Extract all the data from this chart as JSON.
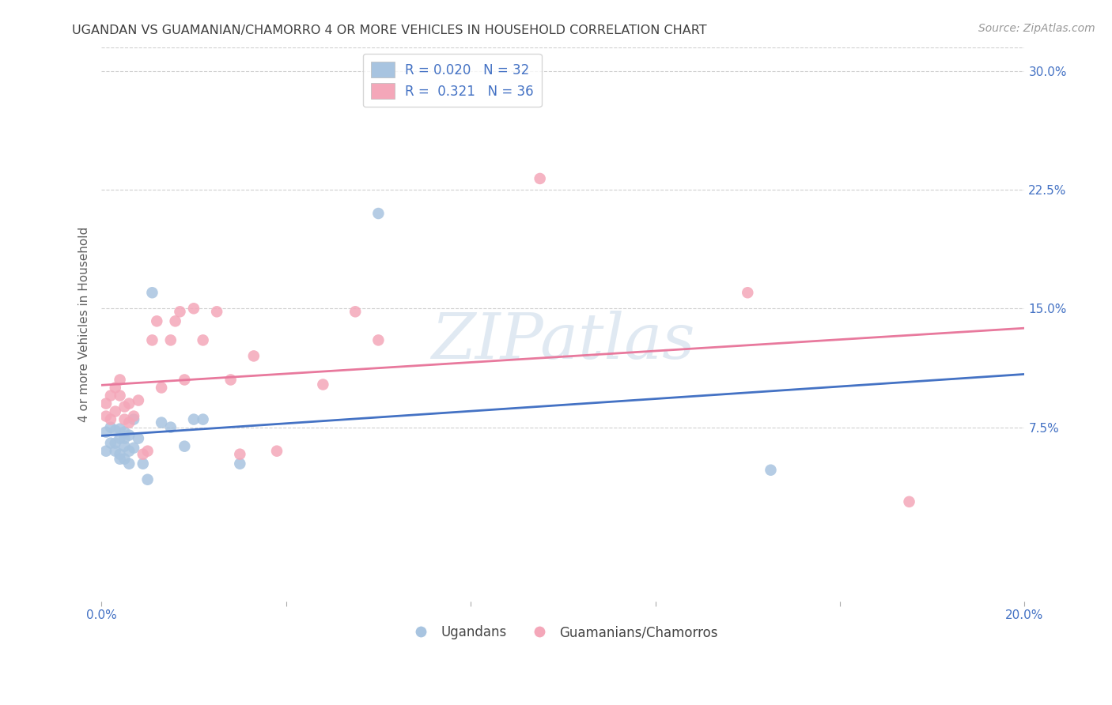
{
  "title": "UGANDAN VS GUAMANIAN/CHAMORRO 4 OR MORE VEHICLES IN HOUSEHOLD CORRELATION CHART",
  "source": "Source: ZipAtlas.com",
  "ylabel": "4 or more Vehicles in Household",
  "ugandan_R": 0.02,
  "ugandan_N": 32,
  "guamanian_R": 0.321,
  "guamanian_N": 36,
  "ugandan_color": "#a8c4e0",
  "guamanian_color": "#f4a7b9",
  "ugandan_line_color": "#4472c4",
  "guamanian_line_color": "#e8799d",
  "legend_label_ugandan": "Ugandans",
  "legend_label_guamanian": "Guamanians/Chamorros",
  "background_color": "#ffffff",
  "grid_color": "#d0d0d0",
  "title_color": "#404040",
  "axis_label_color": "#606060",
  "tick_color_blue": "#4472c4",
  "watermark_text": "ZIPatlas",
  "xlim": [
    0.0,
    0.2
  ],
  "ylim": [
    -0.035,
    0.315
  ],
  "ytick_positions": [
    0.0,
    0.075,
    0.15,
    0.225,
    0.3
  ],
  "ytick_labels": [
    "",
    "7.5%",
    "15.0%",
    "22.5%",
    "30.0%"
  ],
  "xtick_positions": [
    0.0,
    0.04,
    0.08,
    0.12,
    0.16,
    0.2
  ],
  "xtick_labels": [
    "0.0%",
    "",
    "",
    "",
    "",
    "20.0%"
  ],
  "ugandan_x": [
    0.001,
    0.001,
    0.002,
    0.002,
    0.003,
    0.003,
    0.003,
    0.004,
    0.004,
    0.004,
    0.004,
    0.005,
    0.005,
    0.005,
    0.005,
    0.006,
    0.006,
    0.006,
    0.007,
    0.007,
    0.008,
    0.009,
    0.01,
    0.011,
    0.013,
    0.015,
    0.018,
    0.02,
    0.022,
    0.03,
    0.06,
    0.145
  ],
  "ugandan_y": [
    0.06,
    0.072,
    0.065,
    0.075,
    0.073,
    0.065,
    0.06,
    0.055,
    0.068,
    0.074,
    0.058,
    0.072,
    0.063,
    0.068,
    0.055,
    0.07,
    0.06,
    0.052,
    0.08,
    0.062,
    0.068,
    0.052,
    0.042,
    0.16,
    0.078,
    0.075,
    0.063,
    0.08,
    0.08,
    0.052,
    0.21,
    0.048
  ],
  "guamanian_x": [
    0.001,
    0.001,
    0.002,
    0.002,
    0.003,
    0.003,
    0.004,
    0.004,
    0.005,
    0.005,
    0.006,
    0.006,
    0.007,
    0.008,
    0.009,
    0.01,
    0.011,
    0.012,
    0.013,
    0.015,
    0.016,
    0.017,
    0.018,
    0.02,
    0.022,
    0.025,
    0.028,
    0.03,
    0.033,
    0.038,
    0.048,
    0.055,
    0.06,
    0.095,
    0.14,
    0.175
  ],
  "guamanian_y": [
    0.09,
    0.082,
    0.08,
    0.095,
    0.085,
    0.1,
    0.095,
    0.105,
    0.088,
    0.08,
    0.078,
    0.09,
    0.082,
    0.092,
    0.058,
    0.06,
    0.13,
    0.142,
    0.1,
    0.13,
    0.142,
    0.148,
    0.105,
    0.15,
    0.13,
    0.148,
    0.105,
    0.058,
    0.12,
    0.06,
    0.102,
    0.148,
    0.13,
    0.232,
    0.16,
    0.028
  ]
}
